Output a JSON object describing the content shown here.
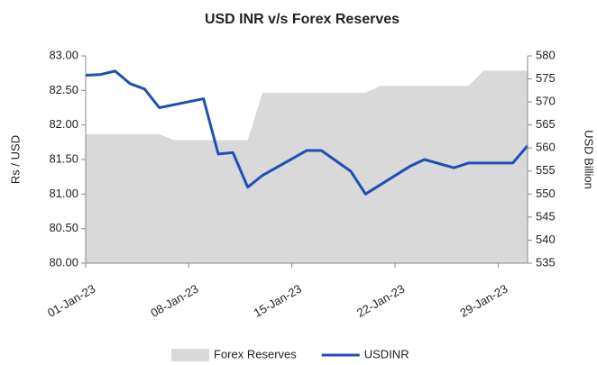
{
  "chart_data": {
    "type": "line-area",
    "title": "USD INR v/s Forex Reserves",
    "y_label": "Rs / USD",
    "y2_label": "USD Billion",
    "series": [
      {
        "name": "Forex Reserves",
        "kind": "area",
        "axis": "y2",
        "color": "#d9d9d9",
        "x": [
          "2023-01-01",
          "2023-01-06",
          "2023-01-07",
          "2023-01-12",
          "2023-01-13",
          "2023-01-20",
          "2023-01-21",
          "2023-01-27",
          "2023-01-28",
          "2023-01-31"
        ],
        "values": [
          563,
          563,
          561.7,
          561.7,
          572,
          572,
          573.5,
          573.5,
          576.8,
          576.8
        ]
      },
      {
        "name": "USDINR",
        "kind": "line",
        "axis": "y",
        "color": "#1f4fb4",
        "x": [
          "2023-01-01",
          "2023-01-02",
          "2023-01-03",
          "2023-01-04",
          "2023-01-05",
          "2023-01-06",
          "2023-01-09",
          "2023-01-10",
          "2023-01-11",
          "2023-01-12",
          "2023-01-13",
          "2023-01-16",
          "2023-01-17",
          "2023-01-19",
          "2023-01-20",
          "2023-01-23",
          "2023-01-24",
          "2023-01-26",
          "2023-01-27",
          "2023-01-30",
          "2023-01-31"
        ],
        "values": [
          82.72,
          82.73,
          82.78,
          82.6,
          82.52,
          82.25,
          82.38,
          81.58,
          81.6,
          81.1,
          81.27,
          81.63,
          81.63,
          81.33,
          81.0,
          81.4,
          81.5,
          81.38,
          81.45,
          81.45,
          81.7
        ]
      }
    ],
    "xlim": [
      "2023-01-01",
      "2023-01-31"
    ],
    "xticks": [
      {
        "value": "2023-01-01",
        "label": "01-Jan-23"
      },
      {
        "value": "2023-01-08",
        "label": "08-Jan-23"
      },
      {
        "value": "2023-01-15",
        "label": "15-Jan-23"
      },
      {
        "value": "2023-01-22",
        "label": "22-Jan-23"
      },
      {
        "value": "2023-01-29",
        "label": "29-Jan-23"
      }
    ],
    "ylim": [
      80,
      83
    ],
    "yticks": [
      {
        "value": 80,
        "label": "80.00"
      },
      {
        "value": 80.5,
        "label": "80.50"
      },
      {
        "value": 81,
        "label": "81.00"
      },
      {
        "value": 81.5,
        "label": "81.50"
      },
      {
        "value": 82,
        "label": "82.00"
      },
      {
        "value": 82.5,
        "label": "82.50"
      },
      {
        "value": 83,
        "label": "83.00"
      }
    ],
    "y2lim": [
      535,
      580
    ],
    "y2ticks": [
      535,
      540,
      545,
      550,
      555,
      560,
      565,
      570,
      575,
      580
    ],
    "legend": "bottom"
  }
}
